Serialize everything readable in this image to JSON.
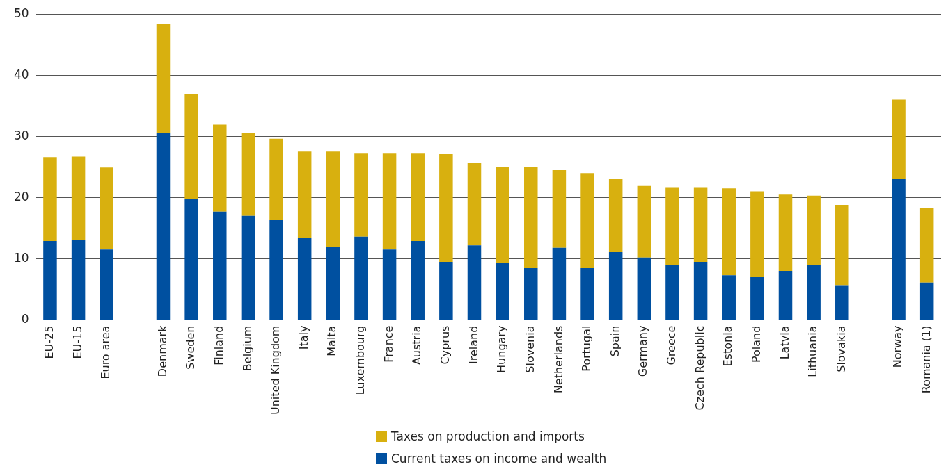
{
  "chart_data": {
    "type": "bar",
    "stacked": true,
    "categories": [
      "EU-25",
      "EU-15",
      "Euro area",
      null,
      "Denmark",
      "Sweden",
      "Finland",
      "Belgium",
      "United Kingdom",
      "Italy",
      "Malta",
      "Luxembourg",
      "France",
      "Austria",
      "Cyprus",
      "Ireland",
      "Hungary",
      "Slovenia",
      "Netherlands",
      "Portugal",
      "Spain",
      "Germany",
      "Greece",
      "Czech Republic",
      "Estonia",
      "Poland",
      "Latvia",
      "Lithuania",
      "Slovakia",
      null,
      "Norway",
      "Romania (1)"
    ],
    "series": [
      {
        "name": "Current taxes on income and wealth",
        "color": "#0050a0",
        "values": [
          12.9,
          13.1,
          11.5,
          null,
          30.6,
          19.8,
          17.7,
          17.0,
          16.4,
          13.4,
          12.0,
          13.6,
          11.5,
          12.9,
          9.5,
          12.2,
          9.3,
          8.5,
          11.8,
          8.5,
          11.1,
          10.2,
          9.0,
          9.5,
          7.3,
          7.1,
          8.0,
          9.0,
          5.7,
          null,
          23.0,
          6.1
        ]
      },
      {
        "name": "Taxes on production and imports",
        "color": "#d8b00f",
        "values": [
          13.7,
          13.6,
          13.4,
          null,
          17.8,
          17.1,
          14.2,
          13.5,
          13.2,
          14.1,
          15.5,
          13.7,
          15.8,
          14.4,
          17.6,
          13.5,
          15.7,
          16.5,
          12.7,
          15.5,
          12.0,
          11.8,
          12.7,
          12.2,
          14.2,
          13.9,
          12.6,
          11.3,
          13.1,
          null,
          13.0,
          12.2
        ]
      }
    ],
    "ylim": [
      0,
      50
    ],
    "yticks": [
      0,
      10,
      20,
      30,
      40,
      50
    ],
    "grid": "y",
    "legend": "bottom"
  }
}
